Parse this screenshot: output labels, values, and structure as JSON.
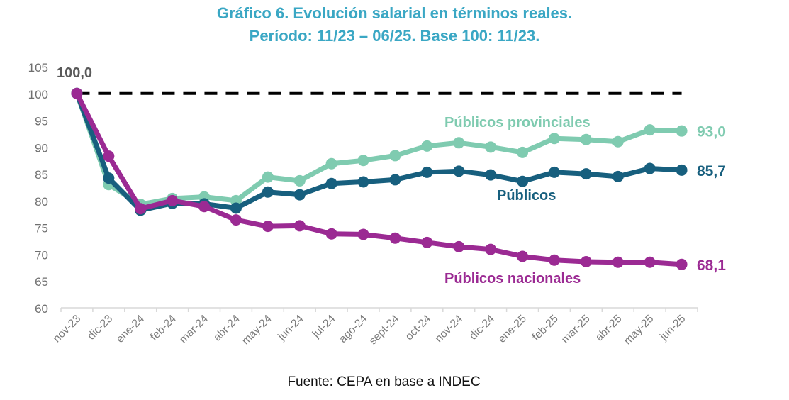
{
  "chart_data": {
    "type": "line",
    "title": "Gráfico 6. Evolución salarial en términos reales.",
    "subtitle": "Período: 11/23 – 06/25. Base 100: 11/23.",
    "xlabel": "",
    "ylabel": "",
    "ylim": [
      60,
      105
    ],
    "yticks": [
      "60",
      "65",
      "70",
      "75",
      "80",
      "85",
      "90",
      "95",
      "100",
      "105"
    ],
    "reference_line": 100,
    "start_label": "100,0",
    "categories": [
      "nov-23",
      "dic-23",
      "ene-24",
      "feb-24",
      "mar-24",
      "abr-24",
      "may-24",
      "jun-24",
      "jul-24",
      "ago-24",
      "sept-24",
      "oct-24",
      "nov-24",
      "dic-24",
      "ene-25",
      "feb-25",
      "mar-25",
      "abr-25",
      "may-25",
      "jun-25"
    ],
    "series": [
      {
        "name": "Públicos provinciales",
        "color": "#7fcbb0",
        "end_label": "93,0",
        "values": [
          100,
          83.0,
          79.3,
          80.4,
          80.7,
          80.0,
          84.4,
          83.7,
          86.9,
          87.5,
          88.4,
          90.2,
          90.8,
          90.0,
          89.0,
          91.6,
          91.4,
          91.0,
          93.2,
          93.0
        ]
      },
      {
        "name": "Públicos",
        "color": "#175f7e",
        "end_label": "85,7",
        "values": [
          100,
          84.2,
          78.2,
          79.5,
          79.4,
          78.6,
          81.6,
          81.1,
          83.2,
          83.5,
          83.9,
          85.3,
          85.5,
          84.8,
          83.6,
          85.3,
          85.0,
          84.5,
          86.0,
          85.7
        ]
      },
      {
        "name": "Públicos nacionales",
        "color": "#9b2a93",
        "end_label": "68,1",
        "values": [
          100,
          88.3,
          78.5,
          80.0,
          78.9,
          76.4,
          75.2,
          75.3,
          73.8,
          73.7,
          73.0,
          72.2,
          71.4,
          70.9,
          69.6,
          68.9,
          68.6,
          68.5,
          68.5,
          68.1
        ]
      }
    ],
    "source": "Fuente: CEPA en base a INDEC"
  }
}
